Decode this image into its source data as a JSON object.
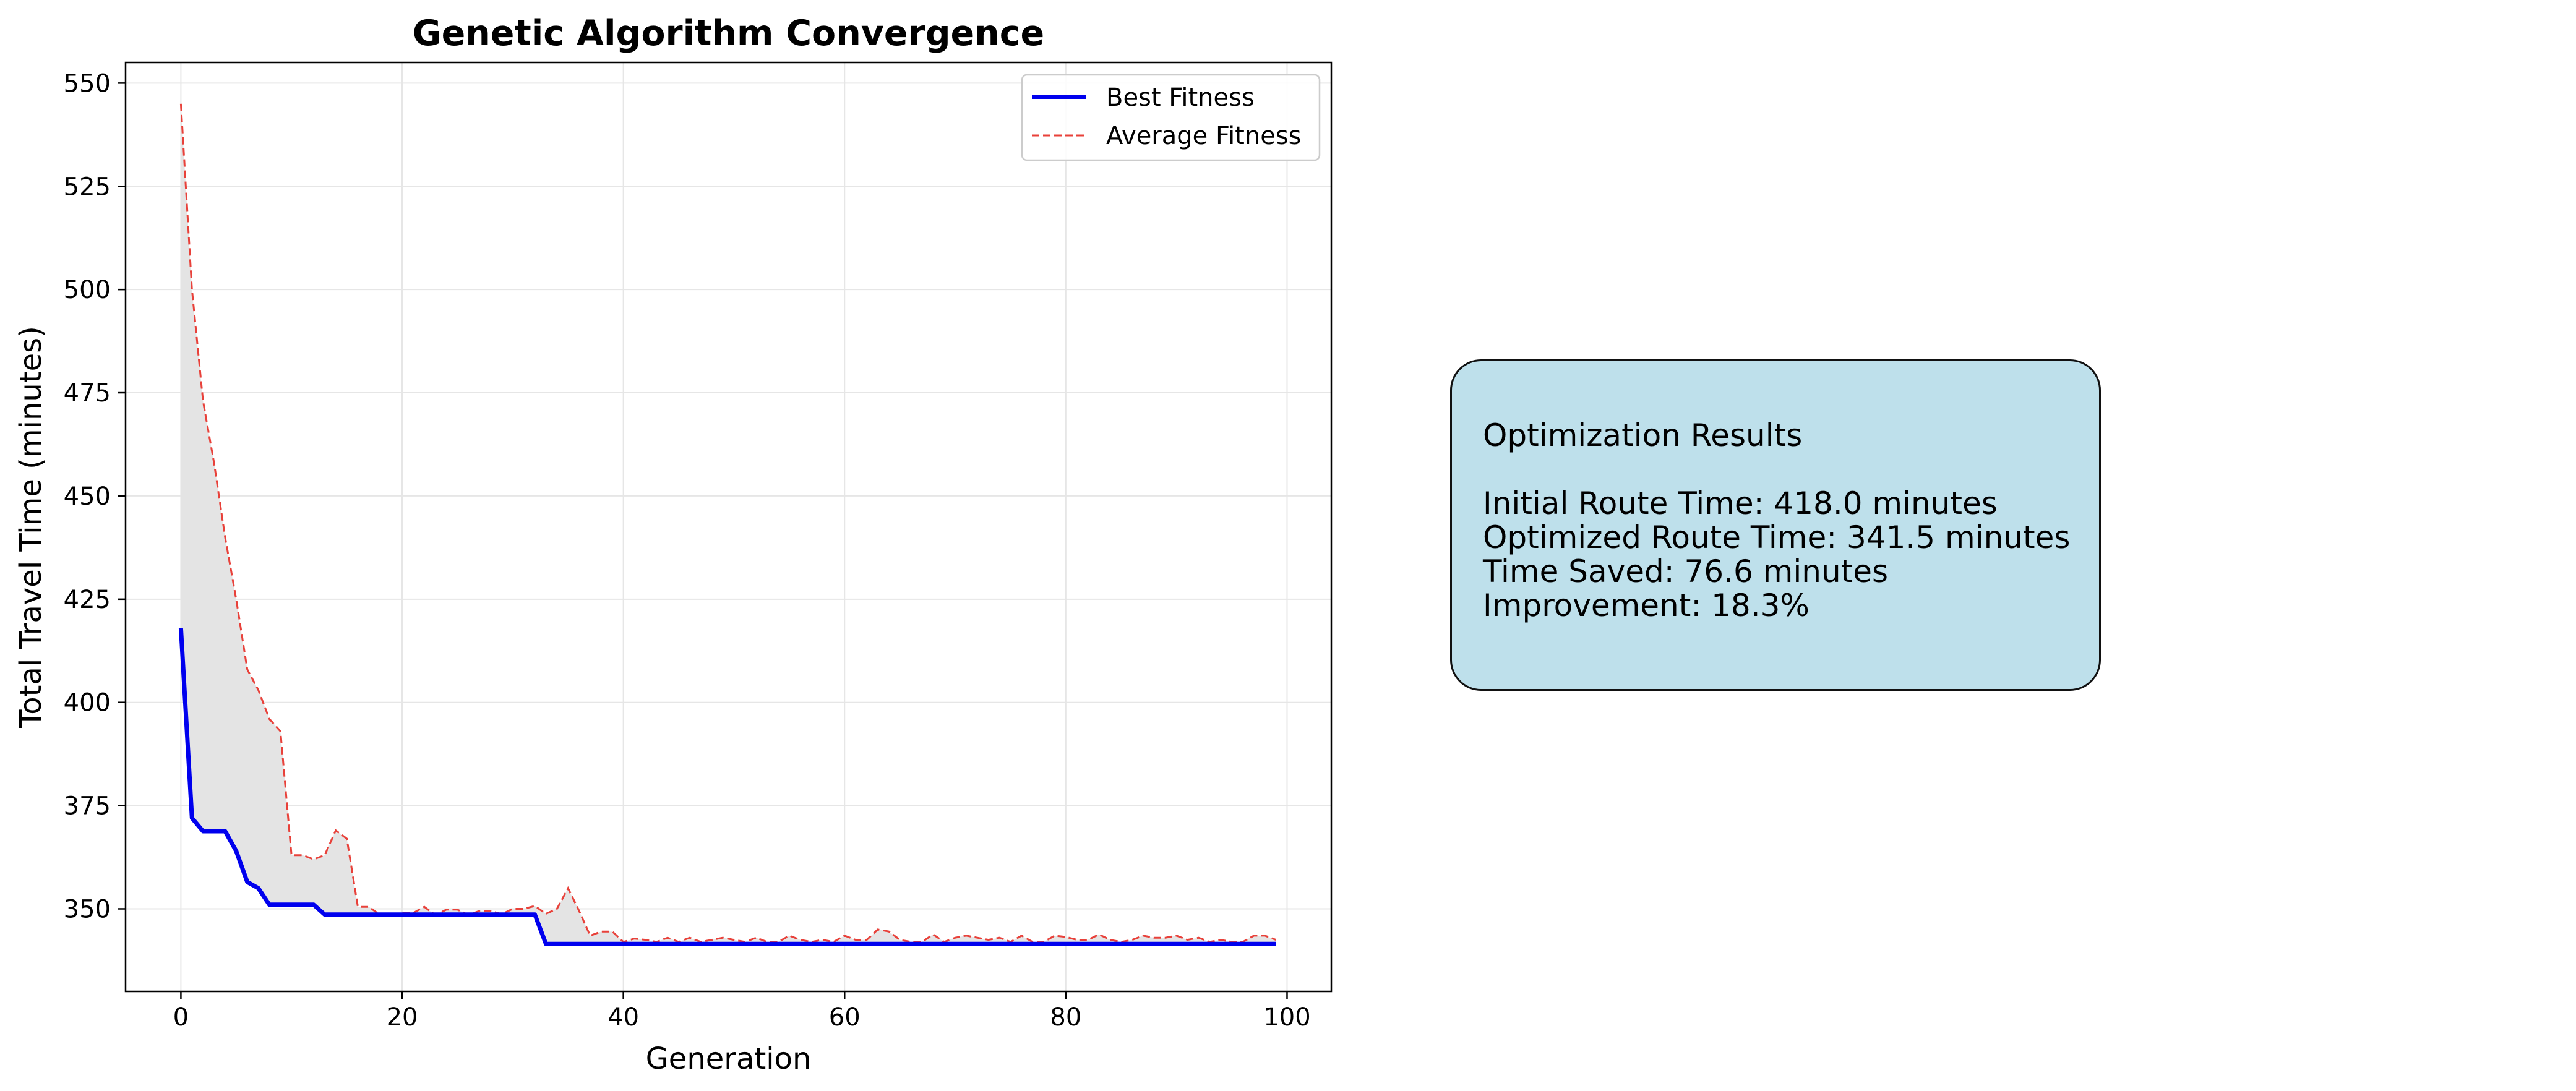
{
  "chart_data": {
    "type": "line",
    "title": "Genetic Algorithm Convergence",
    "xlabel": "Generation",
    "ylabel": "Total Travel Time (minutes)",
    "xlim": [
      -5,
      104
    ],
    "ylim": [
      330,
      555
    ],
    "xticks": [
      0,
      20,
      40,
      60,
      80,
      100
    ],
    "yticks": [
      350,
      375,
      400,
      425,
      450,
      475,
      500,
      525,
      550
    ],
    "grid": true,
    "legend_position": "upper right",
    "fill_between_series": true,
    "colors": {
      "best": "#0000ee",
      "average": "#e8413a",
      "fill": "#e4e4e4"
    },
    "series": [
      {
        "name": "Best Fitness",
        "style": "solid",
        "x": [
          0,
          1,
          2,
          3,
          4,
          5,
          6,
          7,
          8,
          9,
          10,
          11,
          12,
          13,
          14,
          15,
          16,
          17,
          18,
          19,
          20,
          21,
          22,
          23,
          24,
          25,
          26,
          27,
          28,
          29,
          30,
          31,
          32,
          33,
          34,
          35,
          36,
          37,
          38,
          39,
          40,
          41,
          42,
          43,
          44,
          45,
          46,
          47,
          48,
          49,
          50,
          51,
          52,
          53,
          54,
          55,
          56,
          57,
          58,
          59,
          60,
          61,
          62,
          63,
          64,
          65,
          66,
          67,
          68,
          69,
          70,
          71,
          72,
          73,
          74,
          75,
          76,
          77,
          78,
          79,
          80,
          81,
          82,
          83,
          84,
          85,
          86,
          87,
          88,
          89,
          90,
          91,
          92,
          93,
          94,
          95,
          96,
          97,
          98,
          99
        ],
        "values": [
          418.0,
          372.0,
          368.8,
          368.8,
          368.8,
          364.0,
          356.5,
          355.0,
          351.0,
          351.0,
          351.0,
          351.0,
          351.0,
          348.6,
          348.6,
          348.6,
          348.6,
          348.6,
          348.6,
          348.6,
          348.6,
          348.6,
          348.6,
          348.6,
          348.6,
          348.6,
          348.6,
          348.6,
          348.6,
          348.6,
          348.6,
          348.6,
          348.6,
          341.5,
          341.5,
          341.5,
          341.5,
          341.5,
          341.5,
          341.5,
          341.5,
          341.5,
          341.5,
          341.5,
          341.5,
          341.5,
          341.5,
          341.5,
          341.5,
          341.5,
          341.5,
          341.5,
          341.5,
          341.5,
          341.5,
          341.5,
          341.5,
          341.5,
          341.5,
          341.5,
          341.5,
          341.5,
          341.5,
          341.5,
          341.5,
          341.5,
          341.5,
          341.5,
          341.5,
          341.5,
          341.5,
          341.5,
          341.5,
          341.5,
          341.5,
          341.5,
          341.5,
          341.5,
          341.5,
          341.5,
          341.5,
          341.5,
          341.5,
          341.5,
          341.5,
          341.5,
          341.5,
          341.5,
          341.5,
          341.5,
          341.5,
          341.5,
          341.5,
          341.5,
          341.5,
          341.5,
          341.5,
          341.5,
          341.5,
          341.5
        ]
      },
      {
        "name": "Average Fitness",
        "style": "dashed",
        "x": [
          0,
          1,
          2,
          3,
          4,
          5,
          6,
          7,
          8,
          9,
          10,
          11,
          12,
          13,
          14,
          15,
          16,
          17,
          18,
          19,
          20,
          21,
          22,
          23,
          24,
          25,
          26,
          27,
          28,
          29,
          30,
          31,
          32,
          33,
          34,
          35,
          36,
          37,
          38,
          39,
          40,
          41,
          42,
          43,
          44,
          45,
          46,
          47,
          48,
          49,
          50,
          51,
          52,
          53,
          54,
          55,
          56,
          57,
          58,
          59,
          60,
          61,
          62,
          63,
          64,
          65,
          66,
          67,
          68,
          69,
          70,
          71,
          72,
          73,
          74,
          75,
          76,
          77,
          78,
          79,
          80,
          81,
          82,
          83,
          84,
          85,
          86,
          87,
          88,
          89,
          90,
          91,
          92,
          93,
          94,
          95,
          96,
          97,
          98,
          99
        ],
        "values": [
          545.0,
          500.0,
          473.0,
          458.0,
          440.0,
          425.0,
          408.0,
          403.0,
          396.0,
          393.0,
          363.0,
          363.0,
          362.0,
          363.0,
          369.0,
          367.0,
          350.5,
          350.5,
          348.5,
          348.6,
          349.0,
          349.0,
          350.5,
          348.5,
          349.8,
          349.8,
          348.5,
          349.5,
          349.5,
          348.7,
          350.0,
          350.0,
          350.7,
          348.8,
          350.0,
          355.0,
          349.5,
          343.5,
          344.5,
          344.5,
          342.0,
          342.8,
          342.5,
          342.0,
          343.0,
          342.0,
          343.0,
          342.0,
          342.5,
          343.0,
          342.5,
          342.0,
          343.0,
          342.0,
          342.0,
          343.5,
          342.5,
          342.0,
          342.5,
          342.0,
          343.5,
          342.5,
          342.5,
          345.0,
          344.5,
          342.5,
          342.0,
          342.0,
          343.8,
          342.0,
          343.0,
          343.5,
          343.0,
          342.5,
          343.0,
          342.0,
          343.5,
          342.0,
          342.0,
          343.5,
          343.2,
          342.5,
          342.5,
          343.8,
          342.5,
          342.0,
          342.5,
          343.5,
          343.0,
          343.0,
          343.5,
          342.5,
          343.0,
          342.0,
          342.5,
          342.0,
          342.0,
          343.5,
          343.5,
          342.5
        ]
      }
    ]
  },
  "results_panel": {
    "title": "Optimization Results",
    "lines": [
      "Initial Route Time: 418.0 minutes",
      "Optimized Route Time: 341.5 minutes",
      "Time Saved: 76.6 minutes",
      "Improvement: 18.3%"
    ]
  }
}
